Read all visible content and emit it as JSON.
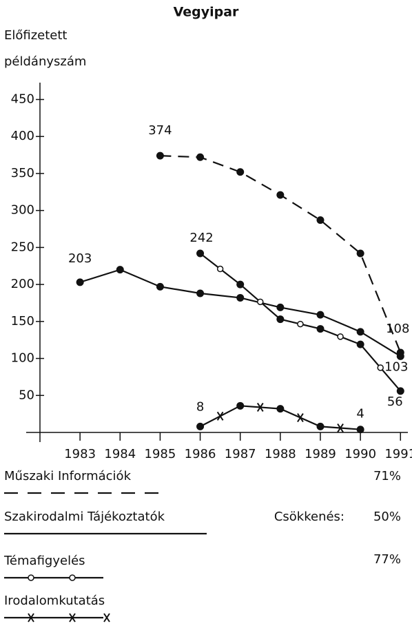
{
  "chart_data": {
    "type": "line",
    "title": "Vegyipar",
    "ylabel": [
      "Előfizetett",
      "példányszám"
    ],
    "x": [
      1983,
      1984,
      1985,
      1986,
      1987,
      1988,
      1989,
      1990,
      1991
    ],
    "xlim": [
      1982,
      1991.15
    ],
    "xticks": [
      1983,
      1984,
      1985,
      1986,
      1987,
      1988,
      1989,
      1990,
      1991
    ],
    "ylim": [
      0,
      470
    ],
    "yticks": [
      50,
      100,
      150,
      200,
      250,
      300,
      350,
      400,
      450
    ],
    "color": "#111111",
    "series": [
      {
        "name": "Műszaki Információk",
        "style": "dashed",
        "values": [
          null,
          null,
          374,
          372,
          352,
          321,
          287,
          242,
          108
        ],
        "value_labels": [
          null,
          null,
          "374",
          null,
          null,
          null,
          null,
          null,
          "108"
        ]
      },
      {
        "name": "Szakirodalmi Tájékoztatók",
        "style": "solid",
        "values": [
          203,
          220,
          197,
          188,
          182,
          169,
          159,
          136,
          103
        ],
        "value_labels": [
          "203",
          null,
          null,
          null,
          null,
          null,
          null,
          null,
          "103"
        ]
      },
      {
        "name": "Témafigyelés",
        "style": "circles",
        "values": [
          null,
          null,
          null,
          242,
          200,
          153,
          140,
          119,
          56
        ],
        "value_labels": [
          null,
          null,
          null,
          "242",
          null,
          null,
          null,
          null,
          "56"
        ]
      },
      {
        "name": "Irodalomkutatás",
        "style": "crosses",
        "values": [
          null,
          null,
          null,
          8,
          36,
          32,
          8,
          4,
          null
        ],
        "value_labels": [
          null,
          null,
          null,
          "8",
          null,
          null,
          null,
          "4",
          null
        ]
      }
    ],
    "annotations": [
      "71%",
      "Csökkenés:",
      "50%",
      "77%"
    ]
  }
}
